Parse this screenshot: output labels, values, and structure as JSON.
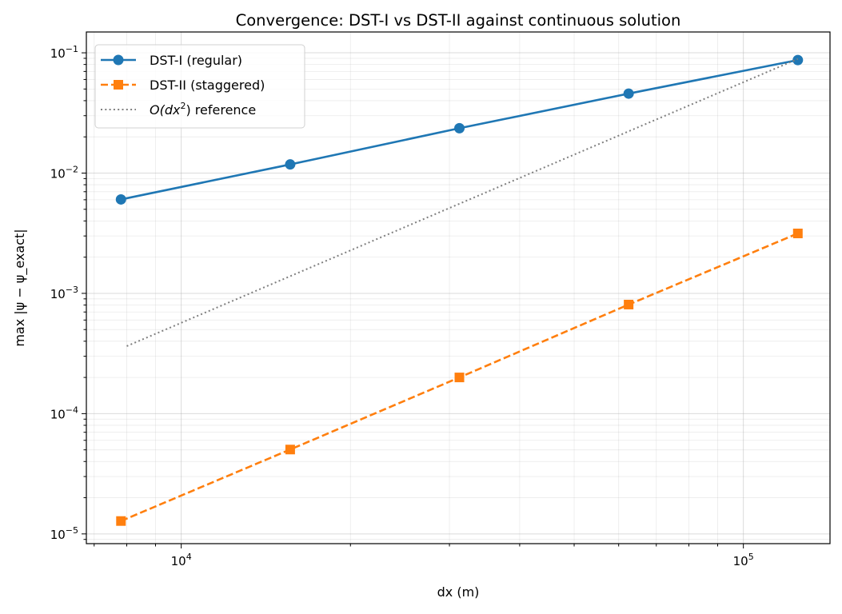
{
  "chart_data": {
    "type": "line",
    "title": "Convergence: DST-I vs DST-II against continuous solution",
    "xlabel": "dx (m)",
    "ylabel": "max |ψ − ψ_exact|",
    "xscale": "log",
    "yscale": "log",
    "xlim": [
      6780,
      142600
    ],
    "ylim": [
      8.3e-06,
      0.149
    ],
    "grid": "both (major and minor)",
    "legend_placement": "top-left",
    "x_tick_labels": [
      {
        "value": 10000,
        "base": "10",
        "exp": "4"
      },
      {
        "value": 100000,
        "base": "10",
        "exp": "5"
      }
    ],
    "y_tick_labels": [
      {
        "value": 0.1,
        "base": "10",
        "exp": "−1"
      },
      {
        "value": 0.01,
        "base": "10",
        "exp": "−2"
      },
      {
        "value": 0.001,
        "base": "10",
        "exp": "−3"
      },
      {
        "value": 0.0001,
        "base": "10",
        "exp": "−4"
      },
      {
        "value": 1e-05,
        "base": "10",
        "exp": "−5"
      }
    ],
    "x": [
      7812.5,
      15625,
      31250,
      62500,
      125000
    ],
    "series": [
      {
        "name": "DST-I (regular)",
        "color": "#1f77b4",
        "style": "solid",
        "marker": "circle",
        "values": [
          0.00604,
          0.0118,
          0.0236,
          0.0458,
          0.087
        ]
      },
      {
        "name": "DST-II (staggered)",
        "color": "#ff7f0e",
        "style": "dashed",
        "marker": "square",
        "values": [
          1.28e-05,
          5.03e-05,
          0.0002,
          0.000807,
          0.00315
        ]
      },
      {
        "name_prefix": "O(dx",
        "name_exp": "2",
        "name_suffix": ") reference",
        "color": "#7f7f7f",
        "style": "dotted",
        "marker": "none",
        "x": [
          8000,
          125000
        ],
        "values": [
          0.000364,
          0.089
        ]
      }
    ]
  }
}
